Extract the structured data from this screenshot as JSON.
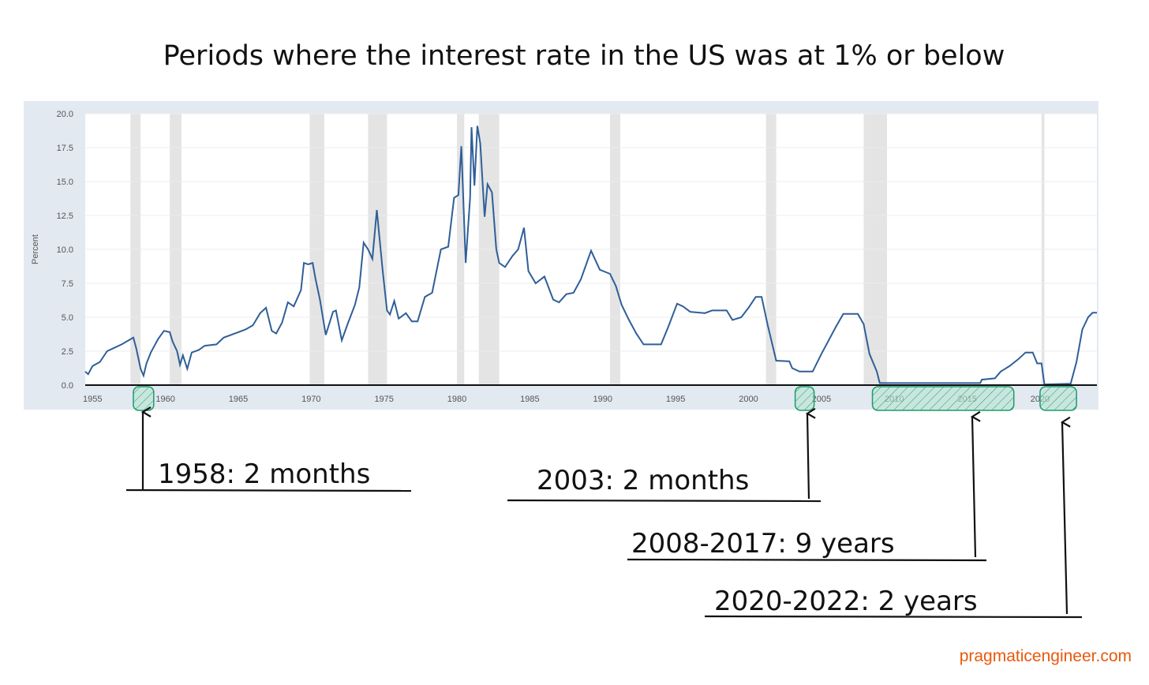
{
  "title": "Periods where the interest rate in the US was at 1% or below",
  "footer": "pragmaticengineer.com",
  "colors": {
    "line": "#2f5f98",
    "recession": "#e4e4e4",
    "panel": "#e2e9f1",
    "highlight": "#1f9a6a",
    "footer": "#e8590c"
  },
  "chart_data": {
    "type": "line",
    "title": "",
    "xlabel": "",
    "ylabel": "Percent",
    "xlim": [
      1954.5,
      2023.9
    ],
    "ylim": [
      0,
      20
    ],
    "grid": true,
    "x_ticks": [
      "1955",
      "1960",
      "1965",
      "1970",
      "1975",
      "1980",
      "1985",
      "1990",
      "1995",
      "2000",
      "2005",
      "2010",
      "2015",
      "2020"
    ],
    "y_ticks": [
      "0.0",
      "2.5",
      "5.0",
      "7.5",
      "10.0",
      "12.5",
      "15.0",
      "17.5",
      "20.0"
    ],
    "recessions": [
      [
        1957.6,
        1958.3
      ],
      [
        1960.3,
        1961.1
      ],
      [
        1969.9,
        1970.9
      ],
      [
        1973.9,
        1975.2
      ],
      [
        1980.0,
        1980.5
      ],
      [
        1981.5,
        1982.9
      ],
      [
        1990.5,
        1991.2
      ],
      [
        2001.2,
        2001.9
      ],
      [
        2007.9,
        2009.5
      ],
      [
        2020.1,
        2020.3
      ]
    ],
    "series": [
      {
        "x": [
          1954.5,
          1954.7,
          1955.0,
          1955.5,
          1956.0,
          1956.5,
          1957.0,
          1957.8,
          1958.0,
          1958.3,
          1958.5,
          1958.7,
          1959.0,
          1959.5,
          1959.9,
          1960.3,
          1960.5,
          1960.8,
          1961.0,
          1961.2,
          1961.5,
          1961.8,
          1962.3,
          1962.7,
          1963.5,
          1964.0,
          1965.0,
          1965.5,
          1966.0,
          1966.5,
          1966.9,
          1967.3,
          1967.6,
          1968.0,
          1968.4,
          1968.8,
          1969.3,
          1969.5,
          1969.8,
          1970.1,
          1970.3,
          1970.6,
          1971.0,
          1971.5,
          1971.7,
          1972.1,
          1972.5,
          1973.0,
          1973.3,
          1973.6,
          1973.9,
          1974.2,
          1974.5,
          1974.9,
          1975.2,
          1975.4,
          1975.7,
          1976.0,
          1976.5,
          1976.9,
          1977.3,
          1977.8,
          1978.3,
          1978.9,
          1979.4,
          1979.8,
          1980.1,
          1980.3,
          1980.6,
          1980.9,
          1981.0,
          1981.2,
          1981.4,
          1981.6,
          1981.9,
          1982.1,
          1982.4,
          1982.7,
          1982.9,
          1983.3,
          1983.8,
          1984.2,
          1984.6,
          1984.9,
          1985.4,
          1986.0,
          1986.6,
          1987.0,
          1987.5,
          1988.0,
          1988.5,
          1989.2,
          1989.8,
          1990.5,
          1990.9,
          1991.3,
          1991.8,
          1992.3,
          1992.8,
          1993.5,
          1994.0,
          1994.5,
          1995.1,
          1995.5,
          1996.0,
          1997.0,
          1997.5,
          1998.5,
          1998.9,
          1999.5,
          2000.0,
          2000.5,
          2000.9,
          2001.3,
          2001.9,
          2002.8,
          2003.0,
          2003.5,
          2004.4,
          2005.0,
          2006.0,
          2006.5,
          2007.5,
          2007.9,
          2008.3,
          2008.8,
          2009.0,
          2015.9,
          2016.0,
          2016.9,
          2017.3,
          2017.9,
          2018.5,
          2019.0,
          2019.5,
          2019.8,
          2020.1,
          2020.3,
          2022.1,
          2022.5,
          2022.9,
          2023.3,
          2023.6,
          2023.9
        ],
        "y": [
          1.0,
          0.8,
          1.4,
          1.7,
          2.5,
          2.75,
          3.0,
          3.5,
          2.7,
          1.2,
          0.7,
          1.6,
          2.4,
          3.4,
          4.0,
          3.9,
          3.2,
          2.5,
          1.5,
          2.2,
          1.2,
          2.4,
          2.6,
          2.9,
          3.0,
          3.5,
          3.9,
          4.1,
          4.4,
          5.3,
          5.7,
          4.0,
          3.8,
          4.6,
          6.1,
          5.8,
          7.0,
          9.0,
          8.9,
          9.0,
          7.8,
          6.3,
          3.7,
          5.4,
          5.5,
          3.3,
          4.5,
          5.9,
          7.2,
          10.5,
          10.0,
          9.3,
          12.9,
          8.5,
          5.5,
          5.2,
          6.2,
          4.9,
          5.3,
          4.7,
          4.7,
          6.5,
          6.8,
          10.0,
          10.2,
          13.8,
          14.0,
          17.6,
          9.0,
          13.8,
          19.0,
          14.7,
          19.1,
          17.8,
          12.4,
          14.8,
          14.2,
          10.0,
          9.0,
          8.7,
          9.5,
          10.0,
          11.6,
          8.4,
          7.5,
          8.0,
          6.3,
          6.1,
          6.7,
          6.8,
          7.8,
          9.9,
          8.5,
          8.2,
          7.3,
          5.9,
          4.8,
          3.8,
          3.0,
          3.0,
          3.0,
          4.3,
          6.0,
          5.8,
          5.4,
          5.3,
          5.5,
          5.5,
          4.8,
          5.0,
          5.7,
          6.5,
          6.5,
          4.5,
          1.8,
          1.75,
          1.25,
          1.0,
          1.0,
          2.3,
          4.3,
          5.25,
          5.25,
          4.5,
          2.3,
          1.0,
          0.15,
          0.15,
          0.4,
          0.5,
          1.0,
          1.4,
          1.9,
          2.4,
          2.4,
          1.6,
          1.6,
          0.05,
          0.1,
          1.7,
          4.1,
          5.0,
          5.33,
          5.33
        ]
      }
    ]
  },
  "annotations": [
    {
      "label": "1958: 2 months",
      "period": [
        1957.8,
        1959.2
      ]
    },
    {
      "label": "2003: 2 months",
      "period": [
        2003.2,
        2004.5
      ]
    },
    {
      "label": "2008-2017: 9 years",
      "period": [
        2008.5,
        2018.2
      ]
    },
    {
      "label": "2020-2022: 2 years",
      "period": [
        2020.0,
        2022.5
      ]
    }
  ]
}
